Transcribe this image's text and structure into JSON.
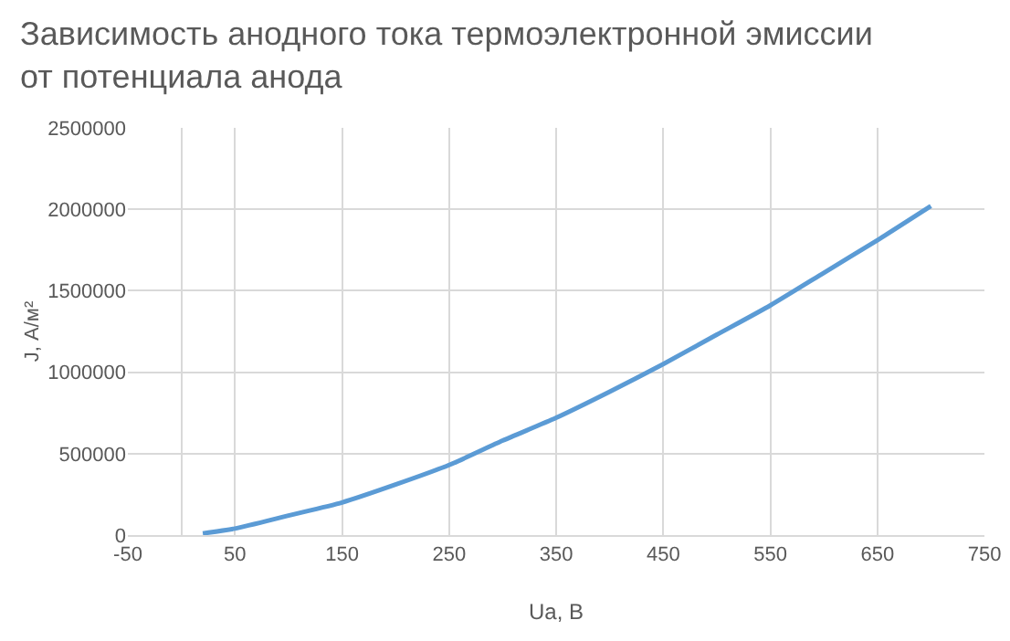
{
  "chart_data": {
    "type": "line",
    "title": "Зависимость анодного тока термоэлектронной эмиссии от потенциала анода",
    "xlabel": "Ua, В",
    "ylabel": "J, А/м²",
    "x": [
      20,
      50,
      100,
      150,
      200,
      250,
      300,
      350,
      400,
      450,
      500,
      550,
      600,
      650,
      700
    ],
    "series": [
      {
        "color": "#5b9bd5",
        "values": [
          10000,
          40000,
          120000,
          200000,
          310000,
          430000,
          580000,
          720000,
          880000,
          1050000,
          1230000,
          1410000,
          1610000,
          1810000,
          2020000
        ]
      }
    ],
    "xlim": [
      -50,
      750
    ],
    "xticks": [
      -50,
      50,
      150,
      250,
      350,
      450,
      550,
      650,
      750
    ],
    "ylim": [
      0,
      2500000
    ],
    "yticks": [
      0,
      500000,
      1000000,
      1500000,
      2000000,
      2500000
    ],
    "grid": true,
    "marker": "none",
    "line_style": "solid"
  }
}
